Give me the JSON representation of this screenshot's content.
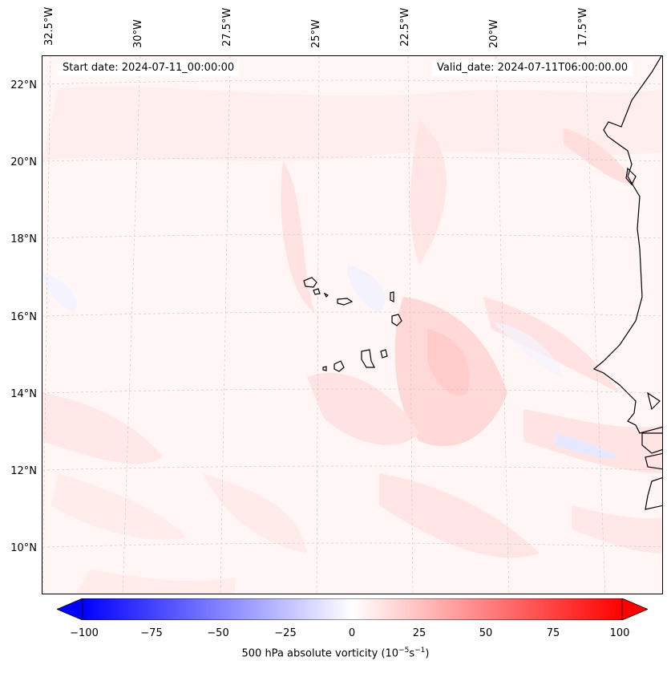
{
  "header": {
    "start_date": "Start date: 2024-07-11_00:00:00",
    "valid_date": "Valid_date: 2024-07-11T06:00:00.00"
  },
  "map": {
    "lon_labels": [
      "32.5°W",
      "30°W",
      "27.5°W",
      "25°W",
      "22.5°W",
      "20°W",
      "17.5°W"
    ],
    "lat_labels": [
      "22°N",
      "20°N",
      "18°N",
      "16°N",
      "14°N",
      "12°N",
      "10°N"
    ],
    "field": "500 hPa absolute vorticity",
    "gridlines": true
  },
  "colorbar": {
    "ticks": [
      "−100",
      "−75",
      "−50",
      "−25",
      "0",
      "25",
      "50",
      "75",
      "100"
    ],
    "label_main": "500 hPa absolute vorticity (10",
    "label_exp1": "−5",
    "label_mid": "s",
    "label_exp2": "−1",
    "label_end": ")",
    "min": -100,
    "max": 100,
    "colors": {
      "low": "#0000ff",
      "mid": "#ffffff",
      "high": "#ff0000"
    }
  }
}
